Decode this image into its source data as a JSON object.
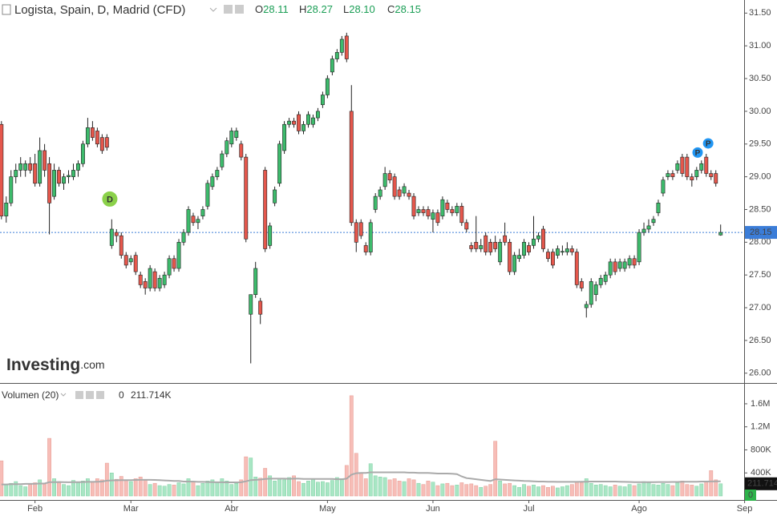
{
  "chart_data": {
    "type": "candlestick",
    "title": "Logista, Spain, D, Madrid (CFD)",
    "readouts": [
      {
        "name": "O",
        "value": 28.11,
        "label": "28.11"
      },
      {
        "name": "H",
        "value": 28.27,
        "label": "28.27"
      },
      {
        "name": "L",
        "value": 28.1,
        "label": "28.10"
      },
      {
        "name": "C",
        "value": 28.15,
        "label": "28.15"
      }
    ],
    "up_color": "#3dbb6c",
    "down_color": "#e5574c",
    "last_color": "#3b7dd8",
    "xlim": [
      -0.3,
      154.9
    ],
    "xticks": [
      {
        "value": 7,
        "label": "Feb"
      },
      {
        "value": 27,
        "label": "Mar"
      },
      {
        "value": 48,
        "label": "Abr"
      },
      {
        "value": 68,
        "label": "May"
      },
      {
        "value": 90,
        "label": "Jun"
      },
      {
        "value": 110,
        "label": "Jul"
      },
      {
        "value": 133,
        "label": "Ago"
      },
      {
        "value": 155,
        "label": "Sep"
      }
    ],
    "ylim": [
      25.85,
      31.7
    ],
    "yticks": [
      {
        "value": 26,
        "label": "26.00"
      },
      {
        "value": 26.5,
        "label": "26.50"
      },
      {
        "value": 27,
        "label": "27.00"
      },
      {
        "value": 27.5,
        "label": "27.50"
      },
      {
        "value": 28,
        "label": "28.00"
      },
      {
        "value": 28.5,
        "label": "28.50"
      },
      {
        "value": 29,
        "label": "29.00"
      },
      {
        "value": 29.5,
        "label": "29.50"
      },
      {
        "value": 30,
        "label": "30.00"
      },
      {
        "value": 30.5,
        "label": "30.50"
      },
      {
        "value": 31,
        "label": "31.00"
      },
      {
        "value": 31.5,
        "label": "31.50"
      }
    ],
    "ohlc": [
      [
        29.8,
        29.85,
        28.35,
        28.4
      ],
      [
        28.4,
        28.7,
        28.3,
        28.6
      ],
      [
        28.6,
        29.1,
        28.55,
        29.0
      ],
      [
        29.0,
        29.2,
        28.9,
        29.1
      ],
      [
        29.1,
        29.3,
        29.0,
        29.2
      ],
      [
        29.1,
        29.25,
        29.0,
        29.2
      ],
      [
        29.2,
        29.3,
        29.05,
        29.1
      ],
      [
        29.2,
        29.35,
        28.85,
        28.9
      ],
      [
        28.9,
        29.6,
        28.85,
        29.4
      ],
      [
        29.4,
        29.5,
        29.0,
        29.1
      ],
      [
        29.2,
        29.3,
        28.12,
        28.6
      ],
      [
        28.7,
        29.2,
        28.65,
        29.1
      ],
      [
        29.1,
        29.15,
        28.85,
        28.9
      ],
      [
        28.9,
        29.05,
        28.8,
        29.0
      ],
      [
        29.0,
        29.1,
        28.9,
        29.02
      ],
      [
        29.0,
        29.2,
        28.95,
        29.1
      ],
      [
        29.1,
        29.25,
        29.0,
        29.2
      ],
      [
        29.2,
        29.55,
        29.15,
        29.5
      ],
      [
        29.5,
        29.9,
        29.45,
        29.75
      ],
      [
        29.75,
        29.85,
        29.55,
        29.6
      ],
      [
        29.7,
        29.75,
        29.45,
        29.5
      ],
      [
        29.6,
        29.65,
        29.35,
        29.4
      ],
      [
        29.6,
        29.65,
        29.4,
        29.45
      ],
      [
        27.95,
        28.35,
        27.9,
        28.2
      ],
      [
        28.15,
        28.2,
        28.0,
        28.1
      ],
      [
        28.1,
        28.15,
        27.75,
        27.8
      ],
      [
        27.8,
        27.85,
        27.6,
        27.65
      ],
      [
        27.7,
        27.8,
        27.65,
        27.75
      ],
      [
        27.8,
        27.85,
        27.5,
        27.55
      ],
      [
        27.5,
        27.55,
        27.3,
        27.35
      ],
      [
        27.4,
        27.45,
        27.2,
        27.3
      ],
      [
        27.3,
        27.65,
        27.25,
        27.6
      ],
      [
        27.55,
        27.6,
        27.25,
        27.3
      ],
      [
        27.3,
        27.5,
        27.25,
        27.45
      ],
      [
        27.35,
        27.55,
        27.3,
        27.5
      ],
      [
        27.5,
        27.8,
        27.45,
        27.75
      ],
      [
        27.75,
        27.8,
        27.55,
        27.6
      ],
      [
        27.6,
        28.05,
        27.55,
        28.0
      ],
      [
        28.0,
        28.2,
        27.95,
        28.15
      ],
      [
        28.15,
        28.55,
        28.1,
        28.5
      ],
      [
        28.4,
        28.45,
        28.25,
        28.3
      ],
      [
        28.3,
        28.4,
        28.2,
        28.35
      ],
      [
        28.4,
        28.55,
        28.35,
        28.5
      ],
      [
        28.55,
        28.95,
        28.5,
        28.9
      ],
      [
        28.85,
        29.05,
        28.8,
        29.0
      ],
      [
        29.0,
        29.15,
        28.95,
        29.1
      ],
      [
        29.15,
        29.4,
        29.1,
        29.35
      ],
      [
        29.35,
        29.6,
        29.3,
        29.55
      ],
      [
        29.5,
        29.75,
        29.45,
        29.7
      ],
      [
        29.6,
        29.75,
        29.55,
        29.7
      ],
      [
        29.5,
        29.55,
        29.25,
        29.3
      ],
      [
        29.3,
        29.35,
        28.0,
        28.05
      ],
      [
        26.9,
        27.2,
        26.15,
        27.2
      ],
      [
        27.2,
        27.7,
        27.15,
        27.6
      ],
      [
        27.1,
        27.15,
        26.75,
        26.9
      ],
      [
        29.1,
        29.15,
        27.85,
        27.9
      ],
      [
        27.95,
        28.3,
        27.9,
        28.25
      ],
      [
        28.6,
        28.85,
        28.55,
        28.8
      ],
      [
        28.9,
        29.55,
        28.85,
        29.5
      ],
      [
        29.4,
        29.85,
        29.35,
        29.8
      ],
      [
        29.8,
        29.9,
        29.75,
        29.85
      ],
      [
        29.85,
        29.9,
        29.75,
        29.8
      ],
      [
        29.95,
        30.0,
        29.65,
        29.7
      ],
      [
        29.7,
        29.85,
        29.65,
        29.8
      ],
      [
        29.8,
        30.0,
        29.75,
        29.95
      ],
      [
        29.8,
        29.95,
        29.75,
        29.9
      ],
      [
        29.9,
        30.05,
        29.85,
        30.0
      ],
      [
        30.1,
        30.3,
        30.05,
        30.25
      ],
      [
        30.25,
        30.55,
        30.2,
        30.5
      ],
      [
        30.6,
        30.85,
        30.55,
        30.8
      ],
      [
        30.8,
        30.95,
        30.75,
        30.9
      ],
      [
        30.9,
        31.15,
        30.85,
        31.1
      ],
      [
        31.15,
        31.2,
        30.75,
        30.8
      ],
      [
        30.0,
        30.4,
        28.25,
        28.3
      ],
      [
        28.3,
        28.35,
        27.85,
        28.0
      ],
      [
        28.3,
        28.35,
        28.05,
        28.1
      ],
      [
        27.95,
        28.0,
        27.8,
        27.85
      ],
      [
        27.85,
        28.35,
        27.8,
        28.3
      ],
      [
        28.5,
        28.75,
        28.45,
        28.7
      ],
      [
        28.7,
        28.85,
        28.65,
        28.8
      ],
      [
        28.85,
        29.15,
        28.8,
        29.05
      ],
      [
        29.05,
        29.1,
        28.9,
        28.95
      ],
      [
        29.0,
        29.05,
        28.65,
        28.7
      ],
      [
        28.8,
        28.85,
        28.65,
        28.7
      ],
      [
        28.75,
        28.9,
        28.7,
        28.85
      ],
      [
        28.75,
        28.8,
        28.65,
        28.7
      ],
      [
        28.7,
        28.75,
        28.35,
        28.4
      ],
      [
        28.45,
        28.55,
        28.4,
        28.5
      ],
      [
        28.5,
        28.55,
        28.4,
        28.45
      ],
      [
        28.5,
        28.55,
        28.35,
        28.4
      ],
      [
        28.35,
        28.5,
        28.15,
        28.45
      ],
      [
        28.45,
        28.5,
        28.25,
        28.3
      ],
      [
        28.4,
        28.7,
        28.35,
        28.65
      ],
      [
        28.6,
        28.65,
        28.45,
        28.5
      ],
      [
        28.5,
        28.55,
        28.4,
        28.45
      ],
      [
        28.45,
        28.6,
        28.4,
        28.55
      ],
      [
        28.55,
        28.6,
        28.25,
        28.3
      ],
      [
        28.3,
        28.35,
        28.15,
        28.2
      ],
      [
        27.95,
        28.0,
        27.85,
        27.9
      ],
      [
        28.0,
        28.4,
        27.85,
        27.9
      ],
      [
        27.9,
        28.05,
        27.85,
        27.95
      ],
      [
        28.1,
        28.15,
        27.8,
        27.85
      ],
      [
        28.0,
        28.05,
        27.8,
        27.85
      ],
      [
        28.0,
        28.1,
        27.85,
        27.9
      ],
      [
        27.7,
        28.05,
        27.65,
        28.0
      ],
      [
        28.1,
        28.3,
        27.95,
        28.0
      ],
      [
        28.0,
        28.05,
        27.5,
        27.55
      ],
      [
        27.55,
        27.85,
        27.5,
        27.8
      ],
      [
        27.75,
        27.9,
        27.7,
        27.8
      ],
      [
        27.8,
        28.05,
        27.75,
        28.0
      ],
      [
        27.95,
        28.0,
        27.8,
        27.85
      ],
      [
        27.95,
        28.4,
        27.9,
        28.05
      ],
      [
        28.05,
        28.15,
        28.0,
        28.1
      ],
      [
        28.2,
        28.25,
        27.85,
        27.9
      ],
      [
        27.85,
        27.9,
        27.7,
        27.75
      ],
      [
        27.85,
        27.9,
        27.6,
        27.65
      ],
      [
        27.8,
        27.95,
        27.75,
        27.9
      ],
      [
        27.85,
        27.95,
        27.8,
        27.86
      ],
      [
        27.85,
        28.0,
        27.8,
        27.9
      ],
      [
        27.9,
        27.95,
        27.8,
        27.85
      ],
      [
        27.85,
        27.9,
        27.3,
        27.35
      ],
      [
        27.4,
        27.45,
        27.25,
        27.3
      ],
      [
        27.0,
        27.1,
        26.85,
        27.05
      ],
      [
        27.05,
        27.45,
        27.0,
        27.4
      ],
      [
        27.2,
        27.4,
        27.1,
        27.35
      ],
      [
        27.35,
        27.5,
        27.3,
        27.45
      ],
      [
        27.4,
        27.55,
        27.35,
        27.5
      ],
      [
        27.5,
        27.75,
        27.45,
        27.7
      ],
      [
        27.7,
        27.75,
        27.5,
        27.55
      ],
      [
        27.6,
        27.75,
        27.55,
        27.7
      ],
      [
        27.6,
        27.75,
        27.55,
        27.7
      ],
      [
        27.65,
        27.8,
        27.6,
        27.75
      ],
      [
        27.75,
        27.8,
        27.6,
        27.65
      ],
      [
        27.7,
        28.2,
        27.65,
        28.15
      ],
      [
        28.15,
        28.3,
        28.1,
        28.2
      ],
      [
        28.2,
        28.35,
        28.15,
        28.25
      ],
      [
        28.3,
        28.4,
        28.25,
        28.35
      ],
      [
        28.45,
        28.65,
        28.4,
        28.6
      ],
      [
        28.75,
        29.0,
        28.7,
        28.95
      ],
      [
        29.0,
        29.1,
        28.95,
        29.05
      ],
      [
        29.05,
        29.1,
        28.95,
        29.0
      ],
      [
        29.1,
        29.25,
        29.05,
        29.2
      ],
      [
        29.3,
        29.35,
        29.0,
        29.05
      ],
      [
        29.3,
        29.35,
        28.95,
        29.0
      ],
      [
        29.0,
        29.05,
        28.85,
        28.95
      ],
      [
        29.0,
        29.15,
        28.95,
        29.1
      ],
      [
        29.1,
        29.25,
        29.05,
        29.2
      ],
      [
        29.3,
        29.35,
        29.0,
        29.05
      ],
      [
        29.05,
        29.1,
        28.95,
        29.0
      ],
      [
        29.05,
        29.1,
        28.85,
        28.9
      ],
      [
        28.11,
        28.27,
        28.1,
        28.15
      ]
    ],
    "events": [
      {
        "label": "D",
        "x": 22.6,
        "y": 28.66,
        "color": "#8bd14a"
      },
      {
        "label": "P",
        "x": 145.2,
        "y": 29.37,
        "color": "#2196f3"
      },
      {
        "label": "P",
        "x": 147.4,
        "y": 29.51,
        "color": "#2196f3"
      }
    ],
    "watermark": [
      "Investing",
      ".com"
    ],
    "volume": {
      "name": "Volumen (20)",
      "up_color": "#a8e6c4",
      "down_color": "#f7bdb7",
      "ma_color": "#aaaaaa",
      "ylim": [
        0,
        1933000
      ],
      "yticks": [
        {
          "value": 400000,
          "label": "400K"
        },
        {
          "value": 800000,
          "label": "800K"
        },
        {
          "value": 1200000,
          "label": "1.2M"
        },
        {
          "value": 1600000,
          "label": "1.6M"
        }
      ],
      "readouts": [
        0,
        {
          "value": 211714,
          "label": "211.714K"
        }
      ],
      "values": [
        610000,
        200000,
        220000,
        250000,
        180000,
        160000,
        200000,
        230000,
        280000,
        220000,
        1000000,
        300000,
        250000,
        200000,
        180000,
        270000,
        230000,
        260000,
        300000,
        240000,
        300000,
        280000,
        570000,
        400000,
        290000,
        340000,
        280000,
        250000,
        300000,
        330000,
        280000,
        200000,
        220000,
        180000,
        170000,
        200000,
        190000,
        230000,
        210000,
        300000,
        250000,
        180000,
        220000,
        260000,
        280000,
        240000,
        300000,
        260000,
        200000,
        220000,
        280000,
        680000,
        660000,
        330000,
        310000,
        480000,
        350000,
        260000,
        300000,
        280000,
        320000,
        350000,
        250000,
        220000,
        260000,
        300000,
        240000,
        250000,
        230000,
        270000,
        320000,
        300000,
        530000,
        1740000,
        740000,
        400000,
        300000,
        560000,
        350000,
        330000,
        320000,
        280000,
        300000,
        260000,
        250000,
        300000,
        280000,
        220000,
        200000,
        260000,
        240000,
        180000,
        210000,
        220000,
        180000,
        190000,
        230000,
        200000,
        210000,
        180000,
        150000,
        170000,
        200000,
        950000,
        260000,
        210000,
        220000,
        180000,
        150000,
        200000,
        170000,
        190000,
        160000,
        180000,
        150000,
        170000,
        140000,
        160000,
        180000,
        200000,
        250000,
        230000,
        300000,
        220000,
        190000,
        200000,
        180000,
        160000,
        190000,
        170000,
        160000,
        200000,
        180000,
        210000,
        250000,
        230000,
        200000,
        190000,
        220000,
        200000,
        180000,
        230000,
        260000,
        200000,
        190000,
        170000,
        210000,
        240000,
        440000,
        280000,
        211714
      ],
      "ma": [
        200000,
        200000,
        205000,
        205000,
        205000,
        210000,
        210000,
        212000,
        215000,
        215000,
        240000,
        240000,
        242000,
        240000,
        238000,
        240000,
        240000,
        242000,
        245000,
        245000,
        248000,
        250000,
        265000,
        270000,
        272000,
        275000,
        275000,
        275000,
        278000,
        280000,
        280000,
        280000,
        278000,
        276000,
        270000,
        265000,
        262000,
        260000,
        250000,
        250000,
        250000,
        245000,
        245000,
        242000,
        240000,
        238000,
        238000,
        236000,
        236000,
        236000,
        238000,
        255000,
        275000,
        280000,
        285000,
        295000,
        300000,
        300000,
        300000,
        300000,
        298000,
        300000,
        300000,
        295000,
        295000,
        295000,
        295000,
        295000,
        295000,
        295000,
        290000,
        290000,
        300000,
        370000,
        395000,
        400000,
        400000,
        410000,
        410000,
        410000,
        410000,
        410000,
        410000,
        410000,
        410000,
        405000,
        405000,
        400000,
        400000,
        400000,
        395000,
        390000,
        390000,
        390000,
        385000,
        380000,
        340000,
        310000,
        300000,
        290000,
        280000,
        270000,
        260000,
        290000,
        285000,
        280000,
        275000,
        270000,
        265000,
        260000,
        258000,
        255000,
        250000,
        250000,
        248000,
        248000,
        245000,
        245000,
        245000,
        245000,
        245000,
        246000,
        248000,
        250000,
        250000,
        250000,
        250000,
        250000,
        250000,
        248000,
        245000,
        243000,
        240000,
        240000,
        240000,
        240000,
        240000,
        242000,
        242000,
        242000,
        244000,
        244000,
        246000,
        246000,
        248000,
        248000,
        250000,
        250000,
        252000,
        255000,
        255000
      ]
    }
  }
}
